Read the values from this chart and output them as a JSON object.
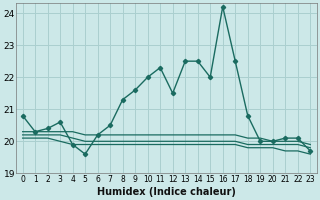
{
  "xlabel": "Humidex (Indice chaleur)",
  "ylabel": "",
  "bg_color": "#cce8e8",
  "grid_color": "#aacfcf",
  "line_color": "#1a6b60",
  "xlim": [
    -0.5,
    23.5
  ],
  "ylim": [
    19,
    24.3
  ],
  "yticks": [
    19,
    20,
    21,
    22,
    23,
    24
  ],
  "xticks": [
    0,
    1,
    2,
    3,
    4,
    5,
    6,
    7,
    8,
    9,
    10,
    11,
    12,
    13,
    14,
    15,
    16,
    17,
    18,
    19,
    20,
    21,
    22,
    23
  ],
  "x": [
    0,
    1,
    2,
    3,
    4,
    5,
    6,
    7,
    8,
    9,
    10,
    11,
    12,
    13,
    14,
    15,
    16,
    17,
    18,
    19,
    20,
    21,
    22,
    23
  ],
  "main_y": [
    20.8,
    20.3,
    20.4,
    20.6,
    19.9,
    19.6,
    20.2,
    20.5,
    21.3,
    21.6,
    22.0,
    22.3,
    21.5,
    22.5,
    22.5,
    22.0,
    24.2,
    22.5,
    20.8,
    20.0,
    20.0,
    20.1,
    20.1,
    19.7
  ],
  "line2_y": [
    20.3,
    20.3,
    20.3,
    20.3,
    20.3,
    20.2,
    20.2,
    20.2,
    20.2,
    20.2,
    20.2,
    20.2,
    20.2,
    20.2,
    20.2,
    20.2,
    20.2,
    20.2,
    20.1,
    20.1,
    20.0,
    20.0,
    20.0,
    19.9
  ],
  "line3_y": [
    20.2,
    20.2,
    20.2,
    20.2,
    20.1,
    20.0,
    20.0,
    20.0,
    20.0,
    20.0,
    20.0,
    20.0,
    20.0,
    20.0,
    20.0,
    20.0,
    20.0,
    20.0,
    19.9,
    19.9,
    19.9,
    19.9,
    19.9,
    19.8
  ],
  "line4_y": [
    20.1,
    20.1,
    20.1,
    20.0,
    19.9,
    19.9,
    19.9,
    19.9,
    19.9,
    19.9,
    19.9,
    19.9,
    19.9,
    19.9,
    19.9,
    19.9,
    19.9,
    19.9,
    19.8,
    19.8,
    19.8,
    19.7,
    19.7,
    19.6
  ]
}
